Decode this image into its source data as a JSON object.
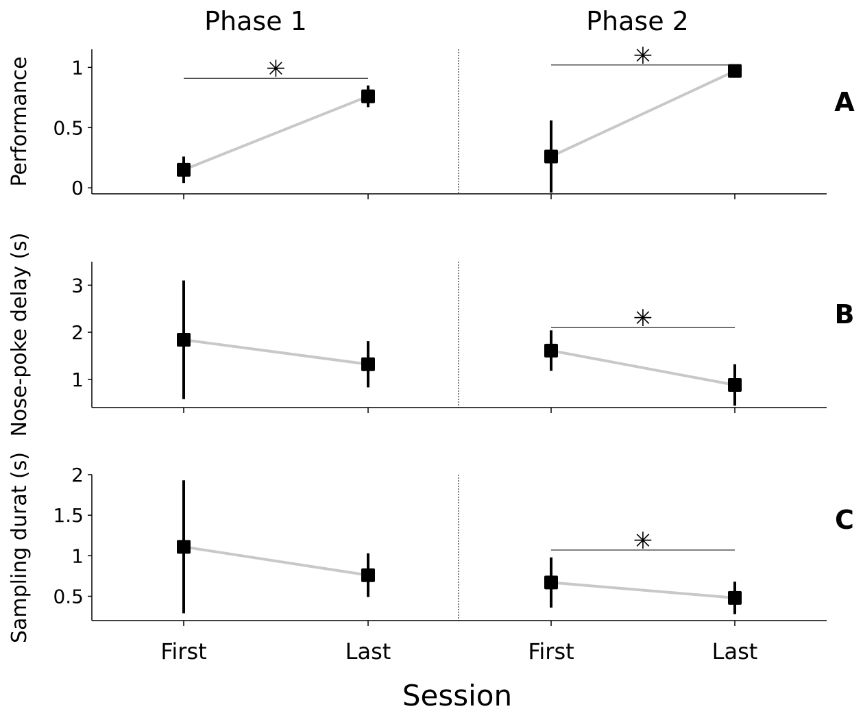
{
  "phase_titles": [
    "Phase 1",
    "Phase 2"
  ],
  "x_label": "Session",
  "x_categories": [
    "First",
    "Last"
  ],
  "chart_data": [
    {
      "type": "line",
      "panel_letter": "A",
      "ylabel": "Performance",
      "ylim": [
        -0.05,
        1.15
      ],
      "yticks": [
        0,
        0.5,
        1
      ],
      "ytick_labels": [
        "0",
        "0.5",
        "1"
      ],
      "categories": [
        "First",
        "Last"
      ],
      "phases": [
        {
          "name": "Phase 1",
          "values": [
            0.15,
            0.76
          ],
          "errors": [
            0.11,
            0.09
          ],
          "significant": true,
          "sig_line_y": 0.91
        },
        {
          "name": "Phase 2",
          "values": [
            0.26,
            0.97
          ],
          "errors": [
            0.3,
            0.01
          ],
          "significant": true,
          "sig_line_y": 1.02
        }
      ],
      "significance_marker": "✳"
    },
    {
      "type": "line",
      "panel_letter": "B",
      "ylabel": "Nose-poke delay (s)",
      "ylim": [
        0.4,
        3.5
      ],
      "yticks": [
        1,
        2,
        3
      ],
      "ytick_labels": [
        "1",
        "2",
        "3"
      ],
      "categories": [
        "First",
        "Last"
      ],
      "phases": [
        {
          "name": "Phase 1",
          "values": [
            1.84,
            1.32
          ],
          "errors": [
            1.26,
            0.49
          ],
          "significant": false
        },
        {
          "name": "Phase 2",
          "values": [
            1.61,
            0.88
          ],
          "errors": [
            0.43,
            0.44
          ],
          "significant": true,
          "sig_line_y": 2.1
        }
      ],
      "significance_marker": "✳"
    },
    {
      "type": "line",
      "panel_letter": "C",
      "ylabel": "Sampling durat (s)",
      "ylim": [
        0.2,
        2.0
      ],
      "yticks": [
        0.5,
        1,
        1.5,
        2
      ],
      "ytick_labels": [
        "0.5",
        "1",
        "1.5",
        "2"
      ],
      "categories": [
        "First",
        "Last"
      ],
      "phases": [
        {
          "name": "Phase 1",
          "values": [
            1.11,
            0.76
          ],
          "errors": [
            0.82,
            0.27
          ],
          "significant": false
        },
        {
          "name": "Phase 2",
          "values": [
            0.67,
            0.48
          ],
          "errors": [
            0.31,
            0.2
          ],
          "significant": true,
          "sig_line_y": 1.07
        }
      ],
      "significance_marker": "✳"
    }
  ],
  "colors": {
    "marker": "#000000",
    "connector": "#c8c8c8",
    "axis": "#000000",
    "divider": "#000000"
  }
}
